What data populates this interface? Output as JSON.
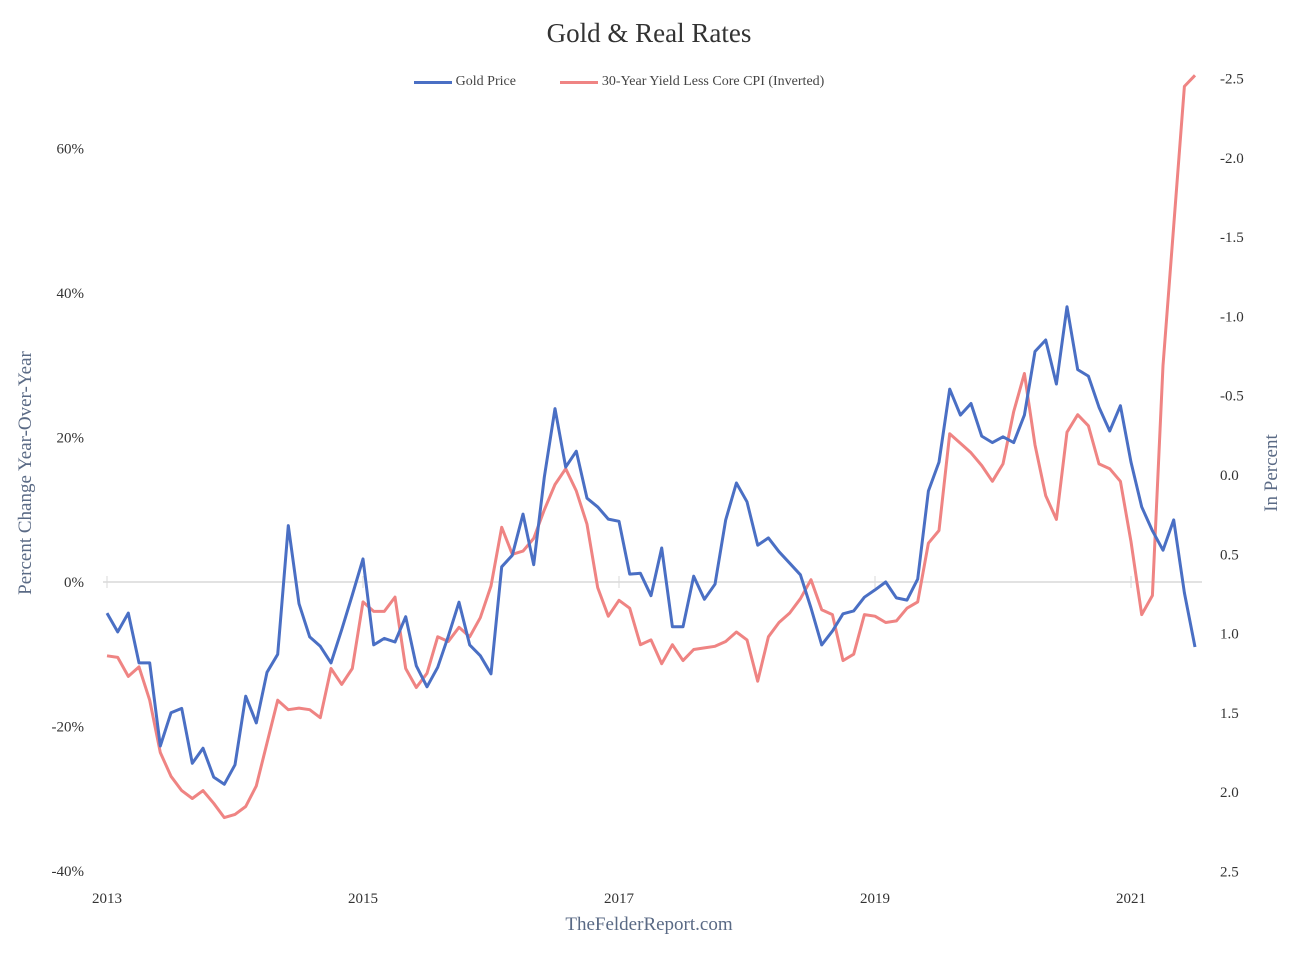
{
  "chart_data": {
    "type": "line",
    "title": "Gold & Real Rates",
    "source": "TheFelderReport.com",
    "ylabel_left": "Percent Change Year-Over-Year",
    "ylabel_right": "In Percent",
    "x_start": "2013-01",
    "x_frequency": "monthly",
    "x_ticks": [
      "2013",
      "2015",
      "2017",
      "2019",
      "2021"
    ],
    "y_left": {
      "range": [
        -40,
        60
      ],
      "ticks": [
        "-40%",
        "-20%",
        "0%",
        "20%",
        "40%",
        "60%"
      ],
      "tick_values": [
        -40,
        -20,
        0,
        20,
        40,
        60
      ]
    },
    "y_right": {
      "range": [
        2.5,
        -2.5
      ],
      "inverted": true,
      "ticks": [
        "2.5",
        "2.0",
        "1.5",
        "1.0",
        "0.5",
        "0.0",
        "-0.5",
        "-1.0",
        "-1.5",
        "-2.0",
        "-2.5"
      ],
      "tick_values": [
        2.5,
        2.0,
        1.5,
        1.0,
        0.5,
        0.0,
        -0.5,
        -1.0,
        -1.5,
        -2.0,
        -2.5
      ]
    },
    "grid": "zero line only",
    "legend_position": "top-center",
    "series": [
      {
        "name": "Gold Price",
        "axis": "left",
        "color": "#4a6fc4",
        "values": [
          -4.3,
          -6.9,
          -4.3,
          -11.2,
          -11.2,
          -22.7,
          -18.1,
          -17.5,
          -25.1,
          -23,
          -27,
          -28,
          -25.3,
          -15.8,
          -19.5,
          -12.5,
          -10,
          7.8,
          -3,
          -7.6,
          -8.9,
          -11.2,
          -6.6,
          -1.8,
          3.2,
          -8.7,
          -7.8,
          -8.3,
          -4.8,
          -11.6,
          -14.5,
          -11.8,
          -7.5,
          -2.8,
          -8.7,
          -10.2,
          -12.7,
          2.1,
          3.7,
          9.4,
          2.4,
          14.5,
          24,
          15.9,
          18.1,
          11.6,
          10.4,
          8.7,
          8.4,
          1.1,
          1.2,
          -1.9,
          4.7,
          -6.2,
          -6.2,
          0.8,
          -2.4,
          -0.3,
          8.6,
          13.7,
          11.1,
          5.1,
          6.1,
          4.2,
          2.6,
          1,
          -3.6,
          -8.7,
          -6.8,
          -4.4,
          -4,
          -2.1,
          -1.1,
          0,
          -2.2,
          -2.5,
          0.4,
          12.6,
          16.6,
          26.7,
          23.1,
          24.7,
          20.2,
          19.3,
          20.1,
          19.3,
          23.1,
          31.9,
          33.5,
          27.4,
          38.1,
          29.4,
          28.5,
          24.2,
          20.9,
          24.4,
          16.6,
          10.4,
          7.1,
          4.4,
          8.6,
          -1.5,
          -9
        ]
      },
      {
        "name": "30-Year Yield Less Core CPI (Inverted)",
        "axis": "right",
        "color": "#ef8483",
        "values": [
          1.14,
          1.15,
          1.27,
          1.21,
          1.42,
          1.75,
          1.9,
          1.99,
          2.04,
          1.99,
          2.07,
          2.16,
          2.14,
          2.09,
          1.96,
          1.69,
          1.42,
          1.48,
          1.47,
          1.48,
          1.53,
          1.22,
          1.32,
          1.22,
          0.8,
          0.86,
          0.86,
          0.77,
          1.22,
          1.34,
          1.25,
          1.02,
          1.05,
          0.96,
          1.02,
          0.9,
          0.7,
          0.33,
          0.5,
          0.48,
          0.4,
          0.22,
          0.06,
          -0.04,
          0.1,
          0.31,
          0.71,
          0.89,
          0.79,
          0.84,
          1.07,
          1.04,
          1.19,
          1.07,
          1.17,
          1.1,
          1.09,
          1.08,
          1.05,
          0.99,
          1.04,
          1.3,
          1.02,
          0.93,
          0.87,
          0.78,
          0.66,
          0.85,
          0.88,
          1.17,
          1.13,
          0.88,
          0.89,
          0.93,
          0.92,
          0.84,
          0.8,
          0.43,
          0.35,
          -0.26,
          -0.2,
          -0.14,
          -0.06,
          0.04,
          -0.07,
          -0.4,
          -0.64,
          -0.19,
          0.13,
          0.28,
          -0.27,
          -0.38,
          -0.31,
          -0.07,
          -0.04,
          0.04,
          0.42,
          0.88,
          0.76,
          -0.69,
          -1.57,
          -2.45,
          -2.52
        ]
      }
    ]
  }
}
